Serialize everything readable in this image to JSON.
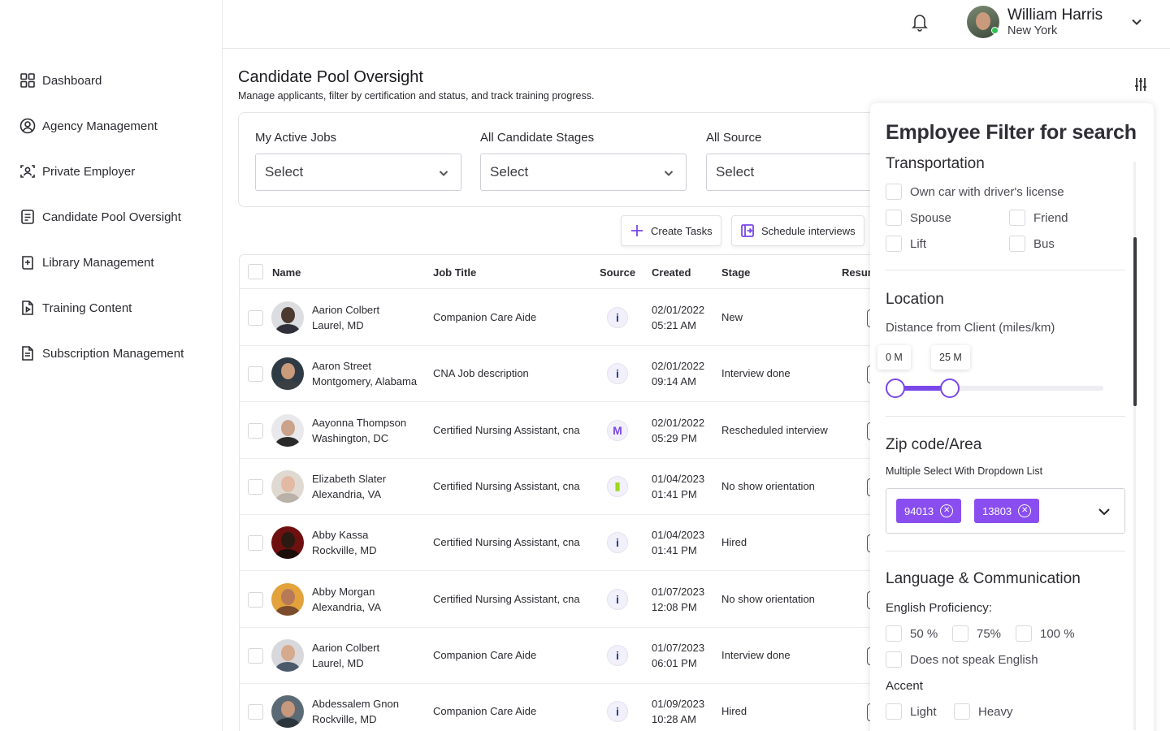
{
  "sidebar": {
    "items": [
      {
        "label": "Dashboard",
        "icon": "grid-icon"
      },
      {
        "label": "Agency Management",
        "icon": "user-circle-icon"
      },
      {
        "label": "Private Employer",
        "icon": "user-scan-icon"
      },
      {
        "label": "Candidate Pool Oversight",
        "icon": "document-list-icon"
      },
      {
        "label": "Library Management",
        "icon": "book-plus-icon"
      },
      {
        "label": "Training Content",
        "icon": "file-play-icon"
      },
      {
        "label": "Subscription Management",
        "icon": "file-text-icon"
      }
    ]
  },
  "header": {
    "user": {
      "name": "William Harris",
      "location": "New York",
      "online_color": "#2ec04f"
    }
  },
  "main": {
    "title": "Candidate Pool Oversight",
    "subtitle": "Manage applicants, filter by certification and status, and track training progress.",
    "filters": [
      {
        "label": "My Active Jobs",
        "value": "Select"
      },
      {
        "label": "All Candidate Stages",
        "value": "Select"
      },
      {
        "label": "All Source",
        "value": "Select"
      }
    ],
    "actions": {
      "create_tasks": "Create Tasks",
      "schedule_interviews": "Schedule interviews"
    },
    "table": {
      "columns": {
        "name": "Name",
        "job_title": "Job Title",
        "source": "Source",
        "created": "Created",
        "stage": "Stage",
        "resume": "Resum"
      },
      "rows": [
        {
          "name": "Aarion Colbert",
          "location": "Laurel, MD",
          "job": "Companion Care Aide",
          "source": "i",
          "source_color": "#1f3d8a",
          "date": "02/01/2022",
          "time": "05:21 AM",
          "stage": "New"
        },
        {
          "name": "Aaron Street",
          "location": "Montgomery, Alabama",
          "job": "CNA Job description",
          "source": "i",
          "source_color": "#1f3d8a",
          "date": "02/01/2022",
          "time": "09:14 AM",
          "stage": "Interview done"
        },
        {
          "name": "Aayonna Thompson",
          "location": "Washington, DC",
          "job": "Certified Nursing Assistant, cna",
          "source": "M",
          "source_color": "#7a48e8",
          "date": "02/01/2022",
          "time": "05:29 PM",
          "stage": "Rescheduled interview"
        },
        {
          "name": "Elizabeth Slater",
          "location": "Alexandria, VA",
          "job": "Certified Nursing Assistant, cna",
          "source": "▮",
          "source_color": "#9bd91f",
          "date": "01/04/2023",
          "time": "01:41 PM",
          "stage": "No show orientation"
        },
        {
          "name": "Abby Kassa",
          "location": "Rockville, MD",
          "job": "Certified Nursing Assistant, cna",
          "source": "i",
          "source_color": "#1f3d8a",
          "date": "01/04/2023",
          "time": "01:41 PM",
          "stage": "Hired"
        },
        {
          "name": "Abby Morgan",
          "location": "Alexandria, VA",
          "job": "Certified Nursing Assistant, cna",
          "source": "i",
          "source_color": "#1f3d8a",
          "date": "01/07/2023",
          "time": "12:08 PM",
          "stage": "No show orientation"
        },
        {
          "name": "Aarion Colbert",
          "location": "Laurel, MD",
          "job": "Companion Care Aide",
          "source": "i",
          "source_color": "#1f3d8a",
          "date": "01/07/2023",
          "time": "06:01 PM",
          "stage": "Interview done"
        },
        {
          "name": "Abdessalem Gnon",
          "location": "Rockville, MD",
          "job": "Companion Care Aide",
          "source": "i",
          "source_color": "#1f3d8a",
          "date": "01/09/2023",
          "time": "10:28 AM",
          "stage": "Hired"
        }
      ]
    }
  },
  "filter_panel": {
    "title": "Employee Filter for search",
    "transportation": {
      "heading": "Transportation",
      "options": [
        "Own car with driver's license",
        "Spouse",
        "Friend",
        "Lift",
        "Bus"
      ]
    },
    "location": {
      "heading": "Location",
      "distance_label": "Distance from Client (miles/km)",
      "min_label": "0 M",
      "max_label": "25 M",
      "min_value": 0,
      "max_value": 25
    },
    "zip": {
      "heading": "Zip code/Area",
      "hint": "Multiple Select With Dropdown List",
      "chips": [
        "94013",
        "13803"
      ]
    },
    "language": {
      "heading": "Language & Communication",
      "proficiency_label": "English Proficiency:",
      "proficiency_options": [
        "50 %",
        "75%",
        "100 %",
        "Does not speak English"
      ],
      "accent_label": "Accent",
      "accent_options": [
        "Light",
        "Heavy"
      ]
    }
  },
  "colors": {
    "accent": "#7a48e8",
    "chip": "#8a4ef0"
  }
}
